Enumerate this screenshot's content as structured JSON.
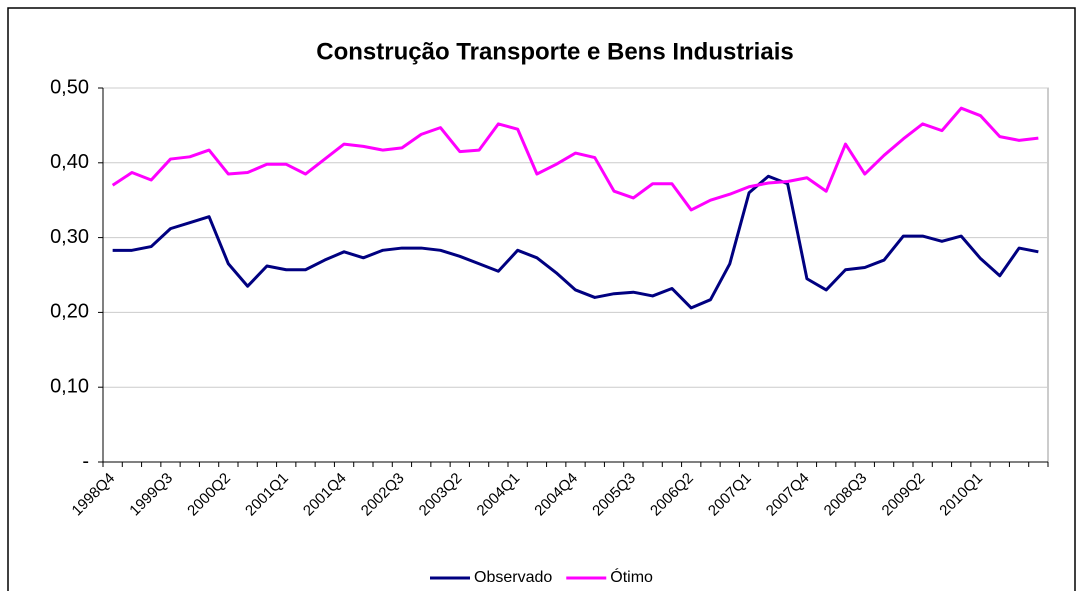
{
  "chart_data": {
    "type": "line",
    "title": "Construção Transporte e Bens Industriais",
    "categories": [
      "1998Q4",
      null,
      null,
      "1999Q3",
      null,
      null,
      "2000Q2",
      null,
      null,
      "2001Q1",
      null,
      null,
      "2001Q4",
      null,
      null,
      "2002Q3",
      null,
      null,
      "2003Q2",
      null,
      null,
      "2004Q1",
      null,
      null,
      "2004Q4",
      null,
      null,
      "2005Q3",
      null,
      null,
      "2006Q2",
      null,
      null,
      "2007Q1",
      null,
      null,
      "2007Q4",
      null,
      null,
      "2008Q3",
      null,
      null,
      "2009Q2",
      null,
      null,
      "2010Q1",
      null,
      null,
      null
    ],
    "series": [
      {
        "name": "Observado",
        "color": "#000080",
        "values": [
          0.283,
          0.283,
          0.288,
          0.312,
          0.32,
          0.328,
          0.265,
          0.235,
          0.262,
          0.257,
          0.257,
          0.27,
          0.281,
          0.273,
          0.283,
          0.286,
          0.286,
          0.283,
          0.275,
          0.265,
          0.255,
          0.283,
          0.273,
          0.253,
          0.23,
          0.22,
          0.225,
          0.227,
          0.222,
          0.232,
          0.206,
          0.217,
          0.265,
          0.36,
          0.382,
          0.372,
          0.245,
          0.23,
          0.257,
          0.26,
          0.27,
          0.302,
          0.302,
          0.295,
          0.302,
          0.272,
          0.249,
          0.286,
          0.281
        ]
      },
      {
        "name": "Ótimo",
        "color": "#ff00ff",
        "values": [
          0.37,
          0.387,
          0.377,
          0.405,
          0.408,
          0.417,
          0.385,
          0.387,
          0.398,
          0.398,
          0.385,
          0.405,
          0.425,
          0.422,
          0.417,
          0.42,
          0.438,
          0.447,
          0.415,
          0.417,
          0.452,
          0.445,
          0.385,
          0.398,
          0.413,
          0.407,
          0.362,
          0.353,
          0.372,
          0.372,
          0.337,
          0.35,
          0.358,
          0.368,
          0.373,
          0.375,
          0.38,
          0.362,
          0.425,
          0.385,
          0.41,
          0.432,
          0.452,
          0.443,
          0.473,
          0.463,
          0.435,
          0.43,
          0.433
        ]
      }
    ],
    "ylim": [
      0,
      0.5
    ],
    "yticks": [
      {
        "value": 0,
        "label": "-"
      },
      {
        "value": 0.1,
        "label": "0,10"
      },
      {
        "value": 0.2,
        "label": "0,20"
      },
      {
        "value": 0.3,
        "label": "0,30"
      },
      {
        "value": 0.4,
        "label": "0,40"
      },
      {
        "value": 0.5,
        "label": "0,50"
      }
    ],
    "grid": true,
    "legend": "bottom"
  }
}
